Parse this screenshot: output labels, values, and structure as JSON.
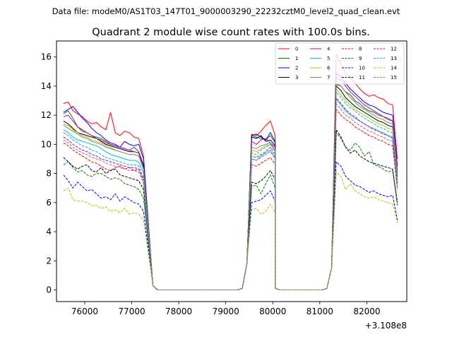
{
  "figure": {
    "suptitle": "Data file: modeM0/AS1T03_147T01_9000003290_22232cztM0_level2_quad_clean.evt",
    "title": "Quadrant 2 module wise count rates with 100.0s bins.",
    "x_offset_label": "+3.108e8"
  },
  "chart_data": {
    "type": "line",
    "xlim": [
      75400,
      82850
    ],
    "ylim": [
      -0.8,
      17.1
    ],
    "x_ticks": [
      76000,
      77000,
      78000,
      79000,
      80000,
      81000,
      82000
    ],
    "y_ticks": [
      0,
      2,
      4,
      6,
      8,
      10,
      12,
      14,
      16
    ],
    "legend_position": "top-right",
    "segments": [
      [
        75550,
        77350
      ],
      [
        79450,
        79950
      ],
      [
        81250,
        82550
      ]
    ],
    "transition_values": {
      "t77450": 0.3,
      "t79350": 0.1,
      "t79450": 1.8,
      "t79950": 9.8,
      "t80050": 0.1,
      "t81150": 0.1,
      "t81250": 1.5
    },
    "series": [
      {
        "name": "0",
        "color": "#ff0000",
        "dashed": false,
        "values": [
          [
            12.8,
            12.9,
            12.3,
            12.1,
            11.9,
            11.6,
            11.4,
            11.5,
            11.2,
            11.0,
            12.2,
            10.8,
            10.6,
            10.9,
            10.8,
            10.5,
            10.4,
            9.2
          ],
          [
            10.7,
            10.6,
            10.9,
            11.3,
            11.6,
            10.6
          ],
          [
            16.2,
            15.5,
            14.9,
            14.6,
            14.2,
            13.8,
            13.5,
            13.3,
            13.4,
            13.2,
            13.1,
            12.8,
            12.7,
            9.0
          ]
        ]
      },
      {
        "name": "1",
        "color": "#008000",
        "dashed": false,
        "values": [
          [
            12.1,
            12.3,
            11.8,
            11.2,
            11.0,
            10.8,
            10.6,
            10.5,
            10.4,
            10.2,
            10.0,
            9.9,
            9.8,
            9.7,
            9.6,
            9.8,
            9.5,
            8.6
          ],
          [
            10.6,
            10.5,
            10.4,
            10.3,
            10.6,
            10.1
          ],
          [
            14.1,
            14.0,
            13.6,
            13.4,
            13.0,
            12.8,
            12.5,
            12.3,
            12.2,
            12.0,
            11.9,
            11.7,
            11.6,
            8.0
          ]
        ]
      },
      {
        "name": "2",
        "color": "#0000ff",
        "dashed": false,
        "values": [
          [
            12.2,
            12.4,
            12.6,
            12.2,
            11.8,
            11.5,
            11.1,
            10.8,
            10.6,
            10.3,
            10.1,
            10.0,
            9.8,
            10.2,
            10.0,
            9.9,
            10.0,
            9.0
          ],
          [
            10.6,
            10.7,
            10.5,
            10.3,
            10.8,
            10.2
          ],
          [
            14.9,
            14.6,
            14.2,
            13.8,
            13.5,
            13.2,
            12.9,
            12.7,
            12.6,
            12.4,
            12.2,
            12.1,
            12.0,
            8.5
          ]
        ]
      },
      {
        "name": "3",
        "color": "#000000",
        "dashed": false,
        "values": [
          [
            11.6,
            11.4,
            11.1,
            10.8,
            10.7,
            10.6,
            10.5,
            10.4,
            10.2,
            10.0,
            9.9,
            9.8,
            9.7,
            9.6,
            9.5,
            9.5,
            9.4,
            8.5
          ],
          [
            10.5,
            10.4,
            10.6,
            10.2,
            10.3,
            9.9
          ],
          [
            14.0,
            13.7,
            13.2,
            12.9,
            12.6,
            12.4,
            12.2,
            12.0,
            11.8,
            11.6,
            11.5,
            11.3,
            11.2,
            7.8
          ]
        ]
      },
      {
        "name": "4",
        "color": "#bf00bf",
        "dashed": false,
        "values": [
          [
            11.9,
            12.0,
            11.6,
            11.2,
            10.9,
            10.8,
            10.6,
            10.4,
            10.3,
            10.1,
            10.0,
            9.9,
            9.8,
            9.7,
            9.6,
            9.5,
            9.4,
            8.4
          ],
          [
            10.2,
            10.0,
            10.3,
            10.4,
            10.1,
            9.8
          ],
          [
            14.6,
            14.4,
            14.0,
            13.6,
            13.3,
            13.0,
            12.7,
            12.5,
            12.3,
            12.1,
            11.9,
            11.8,
            11.6,
            8.2
          ]
        ]
      },
      {
        "name": "5",
        "color": "#00bfbf",
        "dashed": false,
        "values": [
          [
            11.0,
            10.8,
            10.5,
            10.3,
            10.2,
            10.1,
            10.0,
            9.9,
            9.7,
            9.5,
            9.3,
            9.2,
            9.1,
            9.0,
            8.9,
            8.9,
            8.8,
            8.0
          ],
          [
            9.0,
            8.9,
            9.2,
            9.4,
            9.6,
            9.1
          ],
          [
            13.1,
            12.7,
            12.3,
            12.0,
            11.8,
            11.6,
            11.4,
            11.2,
            11.1,
            10.9,
            10.8,
            10.6,
            10.5,
            7.4
          ]
        ]
      },
      {
        "name": "6",
        "color": "#bfbf00",
        "dashed": false,
        "values": [
          [
            11.4,
            11.3,
            11.0,
            10.8,
            10.6,
            10.5,
            10.3,
            10.2,
            10.1,
            9.9,
            9.8,
            9.6,
            9.5,
            9.4,
            9.3,
            9.3,
            9.2,
            8.3
          ],
          [
            9.6,
            9.5,
            9.7,
            9.9,
            10.0,
            9.5
          ],
          [
            13.8,
            13.4,
            13.0,
            12.7,
            12.4,
            12.2,
            12.0,
            11.8,
            11.6,
            11.4,
            11.3,
            11.1,
            11.0,
            7.6
          ]
        ]
      },
      {
        "name": "7",
        "color": "#808080",
        "dashed": false,
        "values": [
          [
            11.3,
            11.1,
            10.9,
            10.7,
            10.5,
            10.4,
            10.2,
            10.1,
            10.0,
            9.8,
            9.7,
            9.6,
            9.5,
            9.4,
            9.3,
            9.3,
            9.2,
            8.3
          ],
          [
            9.8,
            9.7,
            9.9,
            10.0,
            10.1,
            9.6
          ],
          [
            14.2,
            14.0,
            13.6,
            13.2,
            12.9,
            12.6,
            12.4,
            12.2,
            12.0,
            11.8,
            11.7,
            11.5,
            11.4,
            7.9
          ]
        ]
      },
      {
        "name": "8",
        "color": "#ff0000",
        "dashed": true,
        "values": [
          [
            10.1,
            9.9,
            9.6,
            9.4,
            9.2,
            9.0,
            8.8,
            8.7,
            8.5,
            8.3,
            8.2,
            8.4,
            8.5,
            8.3,
            8.4,
            8.2,
            8.3,
            7.6
          ],
          [
            8.6,
            8.5,
            8.7,
            8.9,
            9.1,
            8.6
          ],
          [
            12.4,
            12.0,
            11.7,
            11.5,
            11.2,
            11.0,
            10.8,
            10.6,
            10.5,
            10.3,
            10.2,
            10.0,
            9.9,
            6.9
          ]
        ]
      },
      {
        "name": "9",
        "color": "#008000",
        "dashed": true,
        "values": [
          [
            8.6,
            8.8,
            8.4,
            8.1,
            8.2,
            7.9,
            7.8,
            8.0,
            8.0,
            7.8,
            7.6,
            7.7,
            7.6,
            7.3,
            7.2,
            7.1,
            6.9,
            6.3
          ],
          [
            7.1,
            7.2,
            6.6,
            7.3,
            7.9,
            7.0
          ],
          [
            10.8,
            10.4,
            9.8,
            9.6,
            10.1,
            9.8,
            9.2,
            9.5,
            8.6,
            8.5,
            8.3,
            8.1,
            8.2,
            5.8
          ]
        ]
      },
      {
        "name": "10",
        "color": "#0000ff",
        "dashed": true,
        "values": [
          [
            7.9,
            7.5,
            7.0,
            7.4,
            7.1,
            6.8,
            6.9,
            6.6,
            6.3,
            6.4,
            6.2,
            6.6,
            6.1,
            6.4,
            6.2,
            6.0,
            5.9,
            5.4
          ],
          [
            6.0,
            6.1,
            6.2,
            6.5,
            6.8,
            6.1
          ],
          [
            8.8,
            8.5,
            7.8,
            7.5,
            7.2,
            7.1,
            6.9,
            6.7,
            6.8,
            6.6,
            6.5,
            6.4,
            6.5,
            4.8
          ]
        ]
      },
      {
        "name": "11",
        "color": "#000000",
        "dashed": true,
        "values": [
          [
            9.1,
            8.8,
            8.5,
            8.3,
            8.5,
            8.6,
            8.2,
            8.1,
            8.4,
            8.0,
            8.2,
            8.3,
            7.9,
            7.8,
            7.7,
            7.6,
            7.5,
            6.9
          ],
          [
            7.4,
            7.3,
            7.5,
            7.8,
            8.2,
            7.6
          ],
          [
            11.0,
            10.5,
            9.8,
            9.4,
            9.6,
            9.2,
            9.0,
            8.8,
            8.7,
            8.6,
            8.5,
            8.4,
            8.3,
            6.0
          ]
        ]
      },
      {
        "name": "12",
        "color": "#bf00bf",
        "dashed": true,
        "values": [
          [
            10.5,
            10.3,
            10.0,
            9.8,
            9.6,
            9.5,
            9.3,
            9.2,
            9.0,
            8.9,
            8.8,
            8.7,
            8.6,
            8.5,
            8.4,
            8.4,
            8.3,
            7.5
          ],
          [
            9.2,
            9.1,
            9.3,
            9.5,
            9.8,
            9.3
          ],
          [
            13.2,
            12.8,
            12.4,
            12.1,
            11.9,
            11.6,
            11.4,
            11.2,
            11.0,
            10.9,
            10.7,
            10.6,
            10.4,
            7.2
          ]
        ]
      },
      {
        "name": "13",
        "color": "#00bfbf",
        "dashed": true,
        "values": [
          [
            10.8,
            10.6,
            10.3,
            10.1,
            9.9,
            9.8,
            9.6,
            9.5,
            9.3,
            9.1,
            9.0,
            8.9,
            8.8,
            8.7,
            8.6,
            8.6,
            8.5,
            7.7
          ],
          [
            9.4,
            9.3,
            9.6,
            9.8,
            10.0,
            9.5
          ],
          [
            13.6,
            13.2,
            12.8,
            12.5,
            12.3,
            12.0,
            11.8,
            11.6,
            11.4,
            11.2,
            11.1,
            10.9,
            10.8,
            7.5
          ]
        ]
      },
      {
        "name": "14",
        "color": "#bfbf00",
        "dashed": true,
        "values": [
          [
            6.8,
            7.0,
            6.2,
            6.1,
            6.1,
            6.0,
            5.8,
            5.8,
            5.6,
            5.7,
            5.4,
            5.5,
            5.3,
            5.6,
            5.2,
            5.3,
            5.2,
            4.8
          ],
          [
            5.5,
            5.6,
            5.2,
            5.4,
            5.9,
            5.3
          ],
          [
            8.1,
            7.8,
            6.9,
            7.3,
            6.8,
            6.6,
            6.4,
            6.3,
            6.4,
            6.2,
            6.1,
            6.0,
            5.9,
            4.6
          ]
        ]
      },
      {
        "name": "15",
        "color": "#808080",
        "dashed": true,
        "values": [
          [
            10.3,
            10.1,
            9.8,
            9.6,
            9.4,
            9.3,
            9.1,
            9.0,
            8.9,
            8.7,
            8.6,
            8.5,
            8.4,
            8.3,
            8.2,
            8.2,
            8.1,
            7.3
          ],
          [
            9.0,
            8.9,
            9.1,
            9.3,
            9.5,
            9.0
          ],
          [
            12.8,
            12.4,
            12.0,
            11.8,
            11.5,
            11.3,
            11.1,
            10.9,
            10.8,
            10.6,
            10.5,
            10.3,
            10.2,
            7.0
          ]
        ]
      }
    ]
  }
}
